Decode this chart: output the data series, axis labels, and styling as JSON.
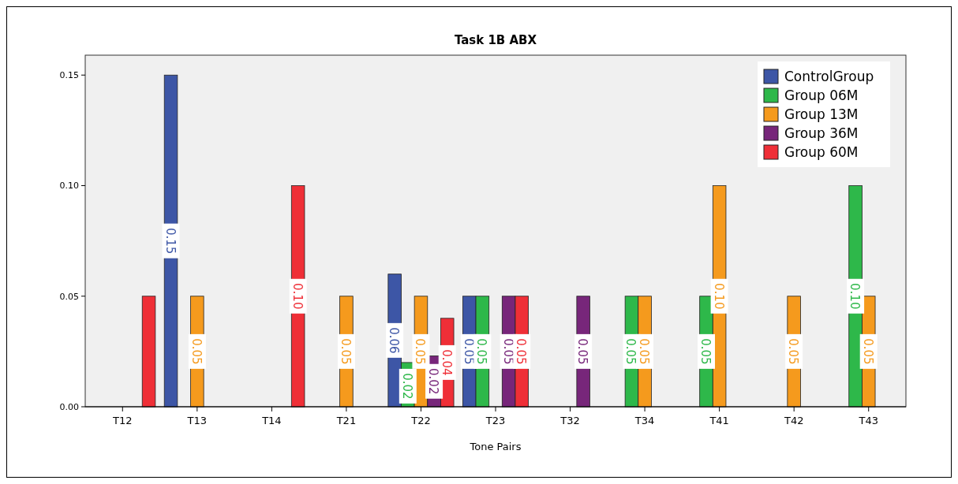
{
  "chart_data": {
    "type": "bar",
    "title": "Task 1B ABX",
    "xlabel": "Tone Pairs",
    "categories": [
      "T12",
      "T13",
      "T14",
      "T21",
      "T22",
      "T23",
      "T32",
      "T34",
      "T41",
      "T42",
      "T43"
    ],
    "series": [
      {
        "name": "ControlGroup",
        "color": "#3d56a6",
        "values": [
          0,
          0.15,
          0,
          0,
          0.06,
          0.05,
          0,
          0,
          0,
          0,
          0
        ],
        "value_labels": [
          null,
          "0.15",
          null,
          null,
          "0.06",
          "0.05",
          null,
          null,
          null,
          null,
          null
        ]
      },
      {
        "name": "Group 06M",
        "color": "#2eb84a",
        "values": [
          0,
          0,
          0,
          0,
          0.02,
          0.05,
          0,
          0.05,
          0.05,
          0,
          0.1
        ],
        "value_labels": [
          null,
          null,
          null,
          null,
          "0.02",
          "0.05",
          null,
          "0.05",
          "0.05",
          null,
          "0.10"
        ]
      },
      {
        "name": "Group 13M",
        "color": "#f59a1d",
        "values": [
          0,
          0.05,
          0,
          0.05,
          0.05,
          0,
          0,
          0.05,
          0.1,
          0.05,
          0.05
        ],
        "value_labels": [
          null,
          "0.05",
          null,
          "0.05",
          "0.05",
          null,
          null,
          "0.05",
          "0.10",
          "0.05",
          "0.05"
        ]
      },
      {
        "name": "Group 36M",
        "color": "#77267a",
        "values": [
          0,
          0,
          0,
          0,
          0.023,
          0.05,
          0.05,
          0,
          0,
          0,
          0
        ],
        "value_labels": [
          null,
          null,
          null,
          null,
          "0.02",
          "0.05",
          "0.05",
          null,
          null,
          null,
          null
        ]
      },
      {
        "name": "Group 60M",
        "color": "#ef2f37",
        "values": [
          0.05,
          0,
          0.1,
          0,
          0.04,
          0.05,
          0,
          0,
          0,
          0,
          0
        ],
        "value_labels": [
          null,
          null,
          "0.10",
          null,
          "0.04",
          "0.05",
          null,
          null,
          null,
          null,
          null
        ]
      }
    ],
    "ylim": [
      0,
      0.159
    ],
    "yticks": [
      {
        "value": 0,
        "label": "0.00"
      },
      {
        "value": 0.05,
        "label": "0.05"
      },
      {
        "value": 0.1,
        "label": "0.10"
      },
      {
        "value": 0.15,
        "label": "0.15"
      }
    ],
    "legend": "top right",
    "grid": false
  }
}
